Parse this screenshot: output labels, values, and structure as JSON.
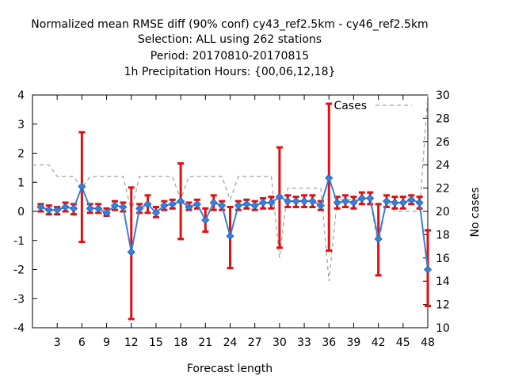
{
  "title_lines": [
    "Normalized mean RMSE diff (90% conf) cy43_ref2.5km - cy46_ref2.5km",
    "Selection: ALL using   262 stations",
    "Period: 20170810-20170815",
    "1h Precipitation   Hours: {00,06,12,18}"
  ],
  "chart_data": {
    "type": "line",
    "xlabel": "Forecast length",
    "ylabel": "",
    "y2label": "No cases",
    "xlim": [
      0,
      48
    ],
    "ylim": [
      -4,
      4
    ],
    "y2lim": [
      10,
      30
    ],
    "x_ticks": [
      "3",
      "6",
      "9",
      "12",
      "15",
      "18",
      "21",
      "24",
      "27",
      "30",
      "33",
      "36",
      "39",
      "42",
      "45",
      "48"
    ],
    "y_ticks": [
      "4",
      "3",
      "2",
      "1",
      "0",
      "-1",
      "-2",
      "-3",
      "-4"
    ],
    "y2_ticks": [
      "30",
      "28",
      "26",
      "24",
      "22",
      "20",
      "18",
      "16",
      "14",
      "12",
      "10"
    ],
    "legend": {
      "label": "Cases",
      "position": "top-right"
    },
    "colors": {
      "diff": "#3a80d8",
      "errorbar": "#e01010",
      "cases": "#a0a0a0"
    },
    "series": [
      {
        "name": "diff",
        "x": [
          1,
          2,
          3,
          4,
          5,
          6,
          7,
          8,
          9,
          10,
          11,
          12,
          13,
          14,
          15,
          16,
          17,
          18,
          19,
          20,
          21,
          22,
          23,
          24,
          25,
          26,
          27,
          28,
          29,
          30,
          31,
          32,
          33,
          34,
          35,
          36,
          37,
          38,
          39,
          40,
          41,
          42,
          43,
          44,
          45,
          46,
          47,
          48
        ],
        "y": [
          0.15,
          0.05,
          0.05,
          0.15,
          0.1,
          0.85,
          0.1,
          0.1,
          -0.05,
          0.2,
          0.15,
          -1.4,
          0.1,
          0.25,
          -0.05,
          0.2,
          0.25,
          0.35,
          0.15,
          0.25,
          -0.3,
          0.3,
          0.2,
          -0.85,
          0.2,
          0.25,
          0.2,
          0.3,
          0.3,
          0.5,
          0.35,
          0.35,
          0.35,
          0.35,
          0.2,
          1.15,
          0.3,
          0.35,
          0.3,
          0.45,
          0.45,
          -0.95,
          0.35,
          0.3,
          0.3,
          0.4,
          0.3,
          -2.0
        ],
        "err_low": [
          0.0,
          -0.1,
          -0.1,
          0.0,
          -0.1,
          -1.05,
          -0.05,
          -0.05,
          -0.15,
          0.05,
          0.0,
          -3.7,
          -0.05,
          -0.05,
          -0.2,
          0.05,
          0.1,
          -0.95,
          0.05,
          0.1,
          -0.7,
          0.05,
          0.05,
          -1.95,
          0.05,
          0.1,
          0.05,
          0.1,
          0.1,
          -1.25,
          0.15,
          0.15,
          0.15,
          0.15,
          0.05,
          -1.35,
          0.1,
          0.15,
          0.1,
          0.25,
          0.25,
          -2.2,
          0.15,
          0.1,
          0.1,
          0.25,
          0.1,
          -3.25
        ],
        "err_high": [
          0.25,
          0.2,
          0.15,
          0.3,
          0.25,
          2.72,
          0.25,
          0.25,
          0.1,
          0.35,
          0.3,
          0.82,
          0.25,
          0.55,
          0.15,
          0.35,
          0.4,
          1.65,
          0.3,
          0.4,
          0.1,
          0.55,
          0.35,
          0.15,
          0.35,
          0.4,
          0.35,
          0.45,
          0.5,
          2.2,
          0.55,
          0.5,
          0.55,
          0.55,
          0.35,
          3.7,
          0.5,
          0.55,
          0.5,
          0.65,
          0.65,
          0.25,
          0.55,
          0.5,
          0.5,
          0.55,
          0.5,
          -0.65
        ]
      },
      {
        "name": "Cases",
        "x": [
          0,
          1,
          2,
          3,
          4,
          5,
          6,
          7,
          8,
          9,
          10,
          11,
          12,
          13,
          14,
          15,
          16,
          17,
          18,
          19,
          20,
          21,
          22,
          23,
          24,
          25,
          26,
          27,
          28,
          29,
          30,
          31,
          32,
          33,
          34,
          35,
          36,
          37,
          38,
          39,
          40,
          41,
          42,
          43,
          44,
          45,
          46,
          47,
          48
        ],
        "y": [
          24,
          24,
          24,
          23,
          23,
          23,
          22,
          23,
          23,
          23,
          23,
          23,
          20,
          23,
          23,
          23,
          23,
          23,
          21,
          23,
          23,
          23,
          23,
          23,
          21,
          23,
          23,
          23,
          23,
          23,
          16,
          22,
          22,
          22,
          22,
          22,
          14,
          21,
          21,
          21,
          21,
          21,
          17,
          21,
          20,
          20,
          20,
          20,
          30
        ]
      }
    ]
  }
}
